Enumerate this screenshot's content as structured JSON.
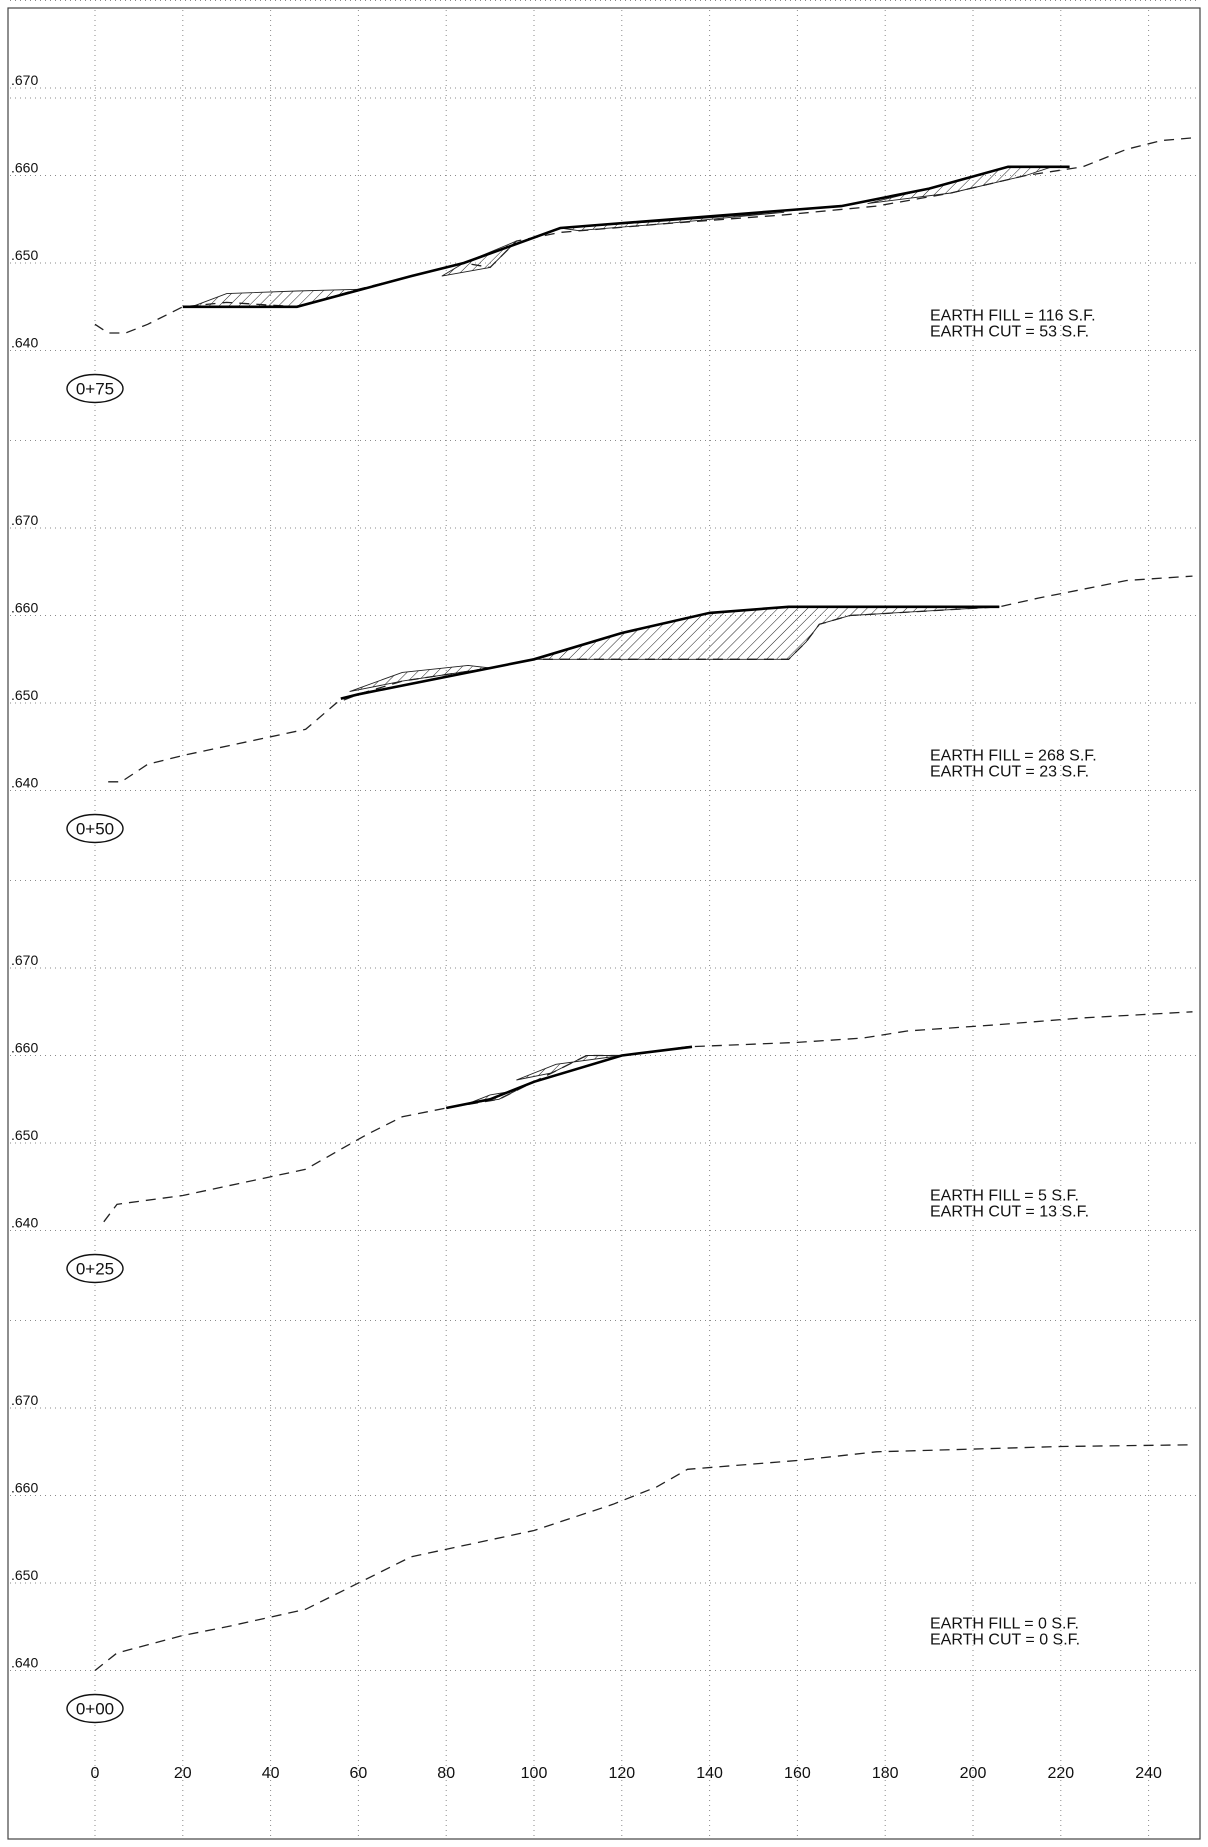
{
  "sheet": {
    "y_ticks": [
      ".640",
      ".650",
      ".660",
      ".670"
    ],
    "x_ticks": [
      "0",
      "20",
      "40",
      "60",
      "80",
      "100",
      "120",
      "140",
      "160",
      "180",
      "200",
      "220",
      "240"
    ],
    "fill_prefix": "EARTH FILL",
    "cut_prefix": "EARTH CUT",
    "unit": "S.F."
  },
  "sections": [
    {
      "station": "0+75",
      "earth_fill_sf": "116",
      "earth_cut_sf": "53",
      "existing_ground": [
        [
          0,
          643
        ],
        [
          3,
          642
        ],
        [
          7,
          642
        ],
        [
          12,
          643
        ],
        [
          20,
          645
        ],
        [
          30,
          645.5
        ],
        [
          46,
          645
        ],
        [
          60,
          647
        ],
        [
          72,
          648.5
        ],
        [
          84,
          650
        ],
        [
          90,
          649.5
        ],
        [
          96,
          652.5
        ],
        [
          106,
          653.5
        ],
        [
          130,
          654.5
        ],
        [
          157,
          655.5
        ],
        [
          178,
          656.5
        ],
        [
          195,
          658
        ],
        [
          212,
          660
        ],
        [
          225,
          661
        ],
        [
          235,
          663
        ],
        [
          243,
          664
        ],
        [
          250,
          664.3
        ]
      ],
      "proposed_grade": [
        [
          20,
          645
        ],
        [
          46,
          645
        ],
        [
          72,
          648.5
        ],
        [
          84,
          650
        ],
        [
          106,
          654
        ],
        [
          157,
          656
        ],
        [
          170,
          656.5
        ],
        [
          190,
          658.5
        ],
        [
          208,
          661
        ],
        [
          222,
          661
        ]
      ],
      "fill_areas": [
        [
          [
            22,
            645
          ],
          [
            46,
            645
          ],
          [
            60,
            647
          ],
          [
            46,
            646.8
          ],
          [
            30,
            646.5
          ]
        ],
        [
          [
            79,
            648.5
          ],
          [
            90,
            649.5
          ],
          [
            96,
            652.5
          ],
          [
            84,
            650
          ]
        ],
        [
          [
            176,
            656.8
          ],
          [
            195,
            658
          ],
          [
            212,
            660
          ],
          [
            218,
            661
          ],
          [
            208,
            661
          ],
          [
            190,
            658.5
          ]
        ]
      ],
      "cut_areas": [
        [
          [
            106,
            654
          ],
          [
            130,
            654.8
          ],
          [
            157,
            655.8
          ],
          [
            130,
            654.5
          ],
          [
            110,
            653.7
          ]
        ]
      ]
    },
    {
      "station": "0+50",
      "earth_fill_sf": "268",
      "earth_cut_sf": "23",
      "existing_ground": [
        [
          3,
          641
        ],
        [
          6,
          641
        ],
        [
          12,
          643
        ],
        [
          20,
          644
        ],
        [
          48,
          647
        ],
        [
          55,
          650
        ],
        [
          60,
          651
        ],
        [
          70,
          652.5
        ],
        [
          90,
          654
        ],
        [
          100,
          655
        ],
        [
          158,
          655
        ],
        [
          162,
          657
        ],
        [
          165,
          659
        ],
        [
          172,
          660
        ],
        [
          206,
          661
        ],
        [
          215,
          662
        ],
        [
          225,
          663
        ],
        [
          235,
          664
        ],
        [
          250,
          664.5
        ]
      ],
      "proposed_grade": [
        [
          56,
          650.5
        ],
        [
          60,
          651
        ],
        [
          100,
          655
        ],
        [
          120,
          658
        ],
        [
          140,
          660.3
        ],
        [
          158,
          661
        ],
        [
          206,
          661
        ]
      ],
      "fill_areas": [
        [
          [
            100,
            655
          ],
          [
            158,
            655
          ],
          [
            162,
            657
          ],
          [
            165,
            659
          ],
          [
            172,
            660
          ],
          [
            206,
            661
          ],
          [
            158,
            661
          ],
          [
            140,
            660.3
          ],
          [
            120,
            658
          ]
        ]
      ],
      "cut_areas": [
        [
          [
            58,
            651.3
          ],
          [
            70,
            652.5
          ],
          [
            90,
            654
          ],
          [
            85,
            654.3
          ],
          [
            70,
            653.5
          ]
        ]
      ]
    },
    {
      "station": "0+25",
      "earth_fill_sf": "5",
      "earth_cut_sf": "13",
      "existing_ground": [
        [
          2,
          641
        ],
        [
          5,
          643
        ],
        [
          20,
          644
        ],
        [
          48,
          647
        ],
        [
          55,
          649
        ],
        [
          62,
          651
        ],
        [
          70,
          653
        ],
        [
          80,
          654
        ],
        [
          92,
          655
        ],
        [
          96,
          656
        ],
        [
          104,
          658
        ],
        [
          112,
          660
        ],
        [
          120,
          660
        ],
        [
          135,
          661
        ],
        [
          160,
          661.5
        ],
        [
          175,
          662
        ],
        [
          185,
          662.8
        ],
        [
          205,
          663.5
        ],
        [
          225,
          664.3
        ],
        [
          250,
          665
        ]
      ],
      "proposed_grade": [
        [
          80,
          654
        ],
        [
          90,
          655
        ],
        [
          100,
          657
        ],
        [
          120,
          660
        ],
        [
          136,
          661
        ]
      ],
      "fill_areas": [
        [
          [
            85,
            654.5
          ],
          [
            92,
            655
          ],
          [
            96,
            656
          ],
          [
            90,
            655.5
          ]
        ]
      ],
      "cut_areas": [
        [
          [
            96,
            657.2
          ],
          [
            104,
            658
          ],
          [
            112,
            660
          ],
          [
            120,
            660
          ],
          [
            105,
            659
          ]
        ]
      ]
    },
    {
      "station": "0+00",
      "earth_fill_sf": "0",
      "earth_cut_sf": "0",
      "existing_ground": [
        [
          0,
          640
        ],
        [
          5,
          642
        ],
        [
          20,
          644
        ],
        [
          30,
          645
        ],
        [
          48,
          647
        ],
        [
          56,
          649
        ],
        [
          72,
          653
        ],
        [
          100,
          656
        ],
        [
          118,
          659
        ],
        [
          128,
          661
        ],
        [
          135,
          663
        ],
        [
          160,
          664
        ],
        [
          178,
          665
        ],
        [
          200,
          665.3
        ],
        [
          220,
          665.6
        ],
        [
          250,
          665.8
        ]
      ],
      "proposed_grade": [],
      "fill_areas": [],
      "cut_areas": []
    }
  ]
}
